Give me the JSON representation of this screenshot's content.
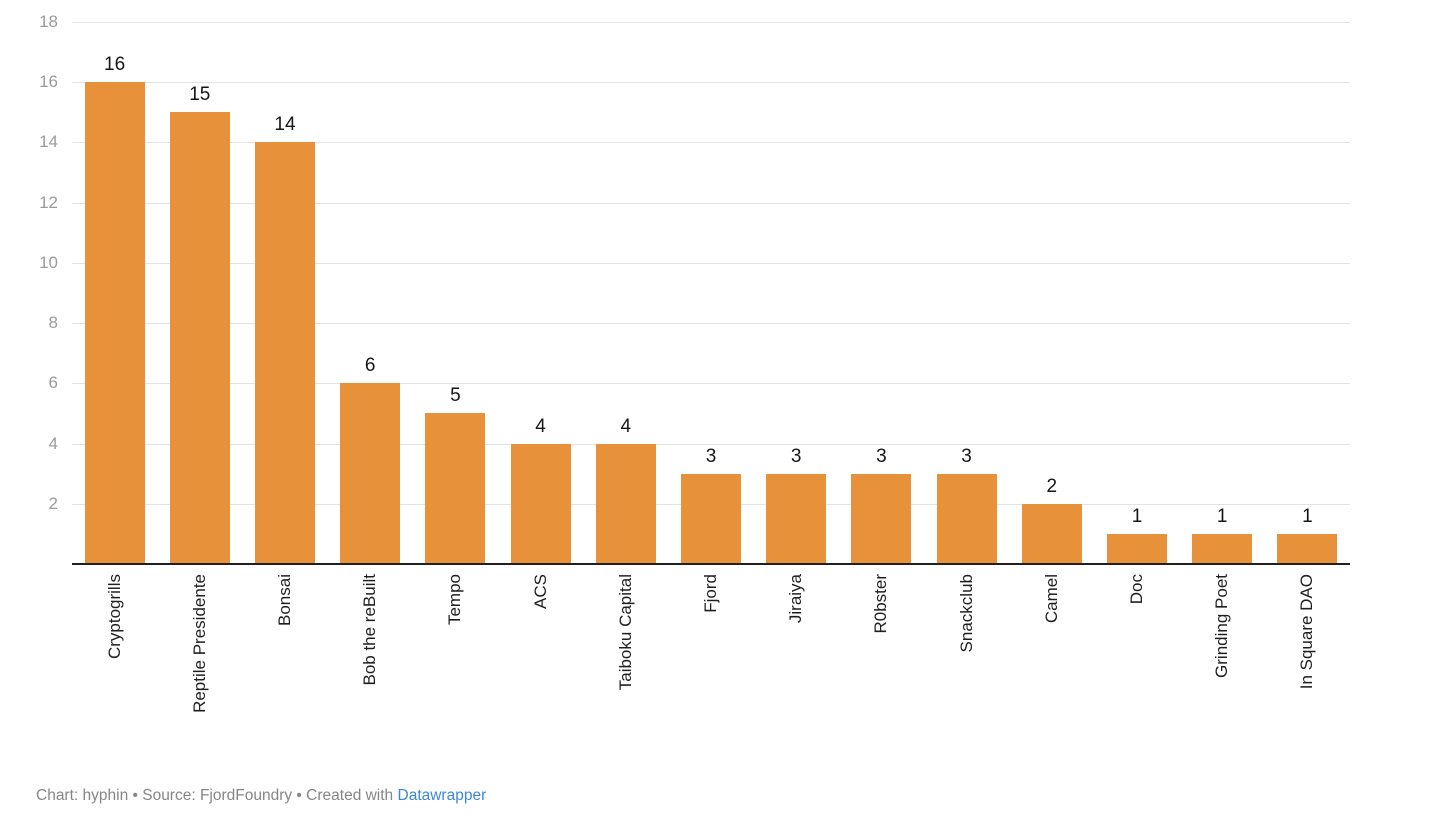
{
  "chart_data": {
    "type": "bar",
    "categories": [
      "Cryptogrills",
      "Reptile Presidente",
      "Bonsai",
      "Bob the reBuilt",
      "Tempo",
      "ACS",
      "Taiboku Capital",
      "Fjord",
      "Jiraiya",
      "R0bster",
      "Snackclub",
      "Camel",
      "Doc",
      "Grinding Poet",
      "In Square DAO"
    ],
    "values": [
      16,
      15,
      14,
      6,
      5,
      4,
      4,
      3,
      3,
      3,
      3,
      2,
      1,
      1,
      1
    ],
    "title": "",
    "xlabel": "",
    "ylabel": "",
    "ylim": [
      0,
      18
    ],
    "yticks": [
      2,
      4,
      6,
      8,
      10,
      12,
      14,
      16,
      18
    ],
    "grid": true,
    "legend": "none",
    "value_labels_shown": true,
    "x_labels_rotated": true
  },
  "colors": {
    "bar": "#E8913B",
    "grid_line": "#E3E3E3",
    "axis_line": "#202020",
    "y_tick_text": "#9B9B9B",
    "value_label_text": "#161616",
    "category_text": "#1F1F1F",
    "footer_text": "#868686",
    "link": "#3C87D8",
    "background": "#FFFFFF"
  },
  "footer": {
    "prefix": "Chart: hyphin • Source: FjordFoundry • Created with ",
    "link_label": "Datawrapper"
  }
}
